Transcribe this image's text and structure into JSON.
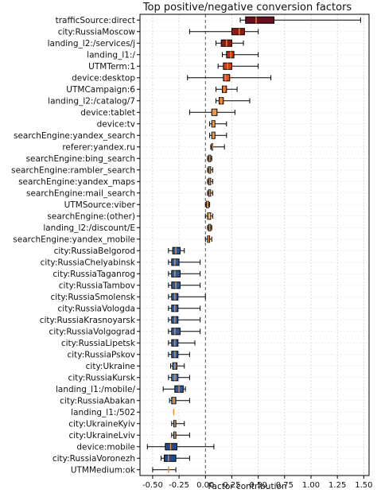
{
  "chart_data": {
    "type": "boxplot",
    "title": "Top positive/negative conversion factors",
    "xlabel": "Factor contribution",
    "ylabel": "",
    "xlim": [
      -0.62,
      1.55
    ],
    "xticks": [
      "-0.50",
      "-0.25",
      "0.00",
      "0.25",
      "0.50",
      "0.75",
      "1.00",
      "1.25",
      "1.50"
    ],
    "xtick_values": [
      -0.5,
      -0.25,
      0,
      0.25,
      0.5,
      0.75,
      1.0,
      1.25,
      1.5
    ],
    "grid": true,
    "zero_line": "dashed",
    "colormap": "diverging (dark red = strongly positive, orange = near zero, blue = negative)",
    "categories": [
      "trafficSource:direct",
      "city:RussiaMoscow",
      "landing_l2:/services/j",
      "landing_l1:/",
      "UTMTerm:1",
      "device:desktop",
      "UTMCampaign:6",
      "landing_l2:/catalog/7",
      "device:tablet",
      "device:tv",
      "searchEngine:yandex_search",
      "referer:yandex.ru",
      "searchEngine:bing_search",
      "searchEngine:rambler_search",
      "searchEngine:yandex_maps",
      "searchEngine:mail_search",
      "UTMSource:viber",
      "searchEngine:(other)",
      "landing_l2:/discount/E",
      "searchEngine:yandex_mobile",
      "city:RussiaBelgorod",
      "city:RussiaChelyabinsk",
      "city:RussiaTaganrog",
      "city:RussiaTambov",
      "city:RussiaSmolensk",
      "city:RussiaVologda",
      "city:RussiaKrasnoyarsk",
      "city:RussiaVolgograd",
      "city:RussiaLipetsk",
      "city:RussiaPskov",
      "city:Ukraine",
      "city:RussiaKursk",
      "landing_l1:/mobile/",
      "city:RussiaAbakan",
      "landing_l1:/502",
      "city:UkraineKyiv",
      "city:UkraineLviv",
      "device:mobile",
      "city:RussiaVoronezh",
      "UTMMedium:ok"
    ],
    "boxes": [
      {
        "whislo": 0.33,
        "q1": 0.38,
        "med": 0.48,
        "q3": 0.65,
        "whishi": 1.47,
        "color": "#6b0d1f"
      },
      {
        "whislo": -0.15,
        "q1": 0.25,
        "med": 0.32,
        "q3": 0.37,
        "whishi": 0.5,
        "color": "#8b1a1a"
      },
      {
        "whislo": 0.1,
        "q1": 0.15,
        "med": 0.2,
        "q3": 0.25,
        "whishi": 0.36,
        "color": "#8b1a1a"
      },
      {
        "whislo": 0.16,
        "q1": 0.2,
        "med": 0.24,
        "q3": 0.27,
        "whishi": 0.5,
        "color": "#c0281f"
      },
      {
        "whislo": 0.12,
        "q1": 0.17,
        "med": 0.21,
        "q3": 0.25,
        "whishi": 0.5,
        "color": "#d03a22"
      },
      {
        "whislo": -0.17,
        "q1": 0.17,
        "med": 0.19,
        "q3": 0.23,
        "whishi": 0.62,
        "color": "#e0522a"
      },
      {
        "whislo": 0.1,
        "q1": 0.16,
        "med": 0.18,
        "q3": 0.2,
        "whishi": 0.3,
        "color": "#e0622e"
      },
      {
        "whislo": 0.1,
        "q1": 0.13,
        "med": 0.15,
        "q3": 0.17,
        "whishi": 0.42,
        "color": "#f07a34"
      },
      {
        "whislo": -0.15,
        "q1": 0.06,
        "med": 0.08,
        "q3": 0.11,
        "whishi": 0.28,
        "color": "#f59a4a"
      },
      {
        "whislo": 0.04,
        "q1": 0.06,
        "med": 0.07,
        "q3": 0.09,
        "whishi": 0.2,
        "color": "#f7a458"
      },
      {
        "whislo": 0.04,
        "q1": 0.06,
        "med": 0.07,
        "q3": 0.09,
        "whishi": 0.2,
        "color": "#f7a458"
      },
      {
        "whislo": 0.05,
        "q1": 0.06,
        "med": 0.07,
        "q3": 0.07,
        "whishi": 0.18,
        "color": "#f7b46c"
      },
      {
        "whislo": 0.02,
        "q1": 0.03,
        "med": 0.04,
        "q3": 0.05,
        "whishi": 0.06,
        "color": "#fbd9a8"
      },
      {
        "whislo": 0.02,
        "q1": 0.03,
        "med": 0.04,
        "q3": 0.05,
        "whishi": 0.07,
        "color": "#fbd9a8"
      },
      {
        "whislo": 0.02,
        "q1": 0.03,
        "med": 0.04,
        "q3": 0.05,
        "whishi": 0.07,
        "color": "#fbd9a8"
      },
      {
        "whislo": 0.02,
        "q1": 0.03,
        "med": 0.04,
        "q3": 0.05,
        "whishi": 0.07,
        "color": "#fbd9a8"
      },
      {
        "whislo": 0.0,
        "q1": 0.01,
        "med": 0.02,
        "q3": 0.03,
        "whishi": 0.04,
        "color": "#fde3c0"
      },
      {
        "whislo": 0.0,
        "q1": 0.02,
        "med": 0.03,
        "q3": 0.05,
        "whishi": 0.07,
        "color": "#fbd0a0"
      },
      {
        "whislo": 0.02,
        "q1": 0.03,
        "med": 0.04,
        "q3": 0.05,
        "whishi": 0.06,
        "color": "#fbd9a8"
      },
      {
        "whislo": 0.0,
        "q1": 0.02,
        "med": 0.03,
        "q3": 0.04,
        "whishi": 0.06,
        "color": "#fbd0a0"
      },
      {
        "whislo": -0.35,
        "q1": -0.31,
        "med": -0.28,
        "q3": -0.24,
        "whishi": -0.2,
        "color": "#2e5a9b"
      },
      {
        "whislo": -0.35,
        "q1": -0.32,
        "med": -0.29,
        "q3": -0.25,
        "whishi": -0.05,
        "color": "#2e5a9b"
      },
      {
        "whislo": -0.35,
        "q1": -0.32,
        "med": -0.29,
        "q3": -0.24,
        "whishi": -0.05,
        "color": "#2e5a9b"
      },
      {
        "whislo": -0.35,
        "q1": -0.32,
        "med": -0.28,
        "q3": -0.24,
        "whishi": -0.05,
        "color": "#2e5a9b"
      },
      {
        "whislo": -0.35,
        "q1": -0.32,
        "med": -0.29,
        "q3": -0.26,
        "whishi": 0.0,
        "color": "#2e5a9b"
      },
      {
        "whislo": -0.35,
        "q1": -0.32,
        "med": -0.29,
        "q3": -0.26,
        "whishi": -0.05,
        "color": "#2e5a9b"
      },
      {
        "whislo": -0.35,
        "q1": -0.32,
        "med": -0.29,
        "q3": -0.26,
        "whishi": -0.05,
        "color": "#2e5a9b"
      },
      {
        "whislo": -0.35,
        "q1": -0.32,
        "med": -0.29,
        "q3": -0.24,
        "whishi": -0.05,
        "color": "#2e5a9b"
      },
      {
        "whislo": -0.35,
        "q1": -0.32,
        "med": -0.29,
        "q3": -0.26,
        "whishi": -0.1,
        "color": "#2e5a9b"
      },
      {
        "whislo": -0.35,
        "q1": -0.32,
        "med": -0.29,
        "q3": -0.26,
        "whishi": -0.15,
        "color": "#2e5a9b"
      },
      {
        "whislo": -0.33,
        "q1": -0.31,
        "med": -0.29,
        "q3": -0.27,
        "whishi": -0.2,
        "color": "#4f74b0"
      },
      {
        "whislo": -0.35,
        "q1": -0.32,
        "med": -0.29,
        "q3": -0.26,
        "whishi": -0.15,
        "color": "#4f74b0"
      },
      {
        "whislo": -0.4,
        "q1": -0.29,
        "med": -0.25,
        "q3": -0.21,
        "whishi": -0.19,
        "color": "#2e5a9b"
      },
      {
        "whislo": -0.34,
        "q1": -0.32,
        "med": -0.3,
        "q3": -0.28,
        "whishi": -0.15,
        "color": "#6f8fc4"
      },
      {
        "whislo": -0.3,
        "q1": -0.3,
        "med": -0.3,
        "q3": -0.3,
        "whishi": -0.3,
        "color": "#f59a4a"
      },
      {
        "whislo": -0.32,
        "q1": -0.3,
        "med": -0.29,
        "q3": -0.28,
        "whishi": -0.2,
        "color": "#c9c9c9"
      },
      {
        "whislo": -0.32,
        "q1": -0.3,
        "med": -0.29,
        "q3": -0.28,
        "whishi": -0.15,
        "color": "#c9c9c9"
      },
      {
        "whislo": -0.55,
        "q1": -0.38,
        "med": -0.33,
        "q3": -0.27,
        "whishi": 0.08,
        "color": "#1f4a8c"
      },
      {
        "whislo": -0.42,
        "q1": -0.39,
        "med": -0.35,
        "q3": -0.28,
        "whishi": -0.15,
        "color": "#1f4a8c"
      },
      {
        "whislo": -0.5,
        "q1": -0.35,
        "med": -0.35,
        "q3": -0.35,
        "whishi": -0.28,
        "color": "#f59a4a"
      }
    ]
  }
}
